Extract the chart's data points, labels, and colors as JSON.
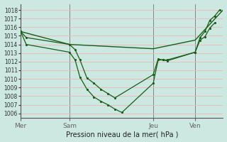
{
  "background_color": "#cce8e0",
  "grid_color": "#e8b8b8",
  "line_color": "#1a5c1a",
  "title": "Pression niveau de la mer( hPa )",
  "ylim": [
    1005.5,
    1018.7
  ],
  "yticks": [
    1006,
    1007,
    1008,
    1009,
    1010,
    1011,
    1012,
    1013,
    1014,
    1015,
    1016,
    1017,
    1018
  ],
  "day_labels": [
    "Mer",
    "Sam",
    "Jeu",
    "Ven"
  ],
  "vline_x": [
    0,
    7,
    19,
    25
  ],
  "xmin": 0,
  "xmax": 29,
  "line3_x": [
    0,
    7,
    19,
    25,
    29
  ],
  "line3_y": [
    1015.5,
    1014.0,
    1013.5,
    1014.5,
    1018.0
  ],
  "line1_x": [
    0,
    0.8,
    7,
    7.8,
    8.5,
    9.5,
    10.5,
    11.5,
    12.5,
    13.5,
    19,
    19.7,
    20.4,
    21,
    25,
    25.7,
    26.4,
    27.1,
    27.8
  ],
  "line1_y": [
    1015.5,
    1014.8,
    1014.0,
    1013.4,
    1012.2,
    1010.1,
    1009.5,
    1008.8,
    1008.3,
    1007.8,
    1010.5,
    1012.3,
    1012.2,
    1012.2,
    1013.1,
    1014.5,
    1014.9,
    1015.9,
    1016.5
  ],
  "line2_x": [
    0,
    0.8,
    7,
    7.8,
    8.5,
    9.5,
    10.5,
    11.5,
    12.5,
    13.5,
    14.5,
    19,
    19.7,
    20.4,
    21,
    25,
    25.7,
    26.4,
    27.1,
    27.8,
    28.5
  ],
  "line2_y": [
    1015.5,
    1014.0,
    1013.1,
    1012.2,
    1010.2,
    1008.8,
    1007.9,
    1007.4,
    1007.0,
    1006.5,
    1006.1,
    1009.5,
    1012.2,
    1012.2,
    1012.1,
    1013.1,
    1014.8,
    1015.5,
    1016.8,
    1017.3,
    1018.0
  ],
  "yticklabelsize": 5.5,
  "xticklabelsize": 6.5,
  "title_fontsize": 7.0
}
